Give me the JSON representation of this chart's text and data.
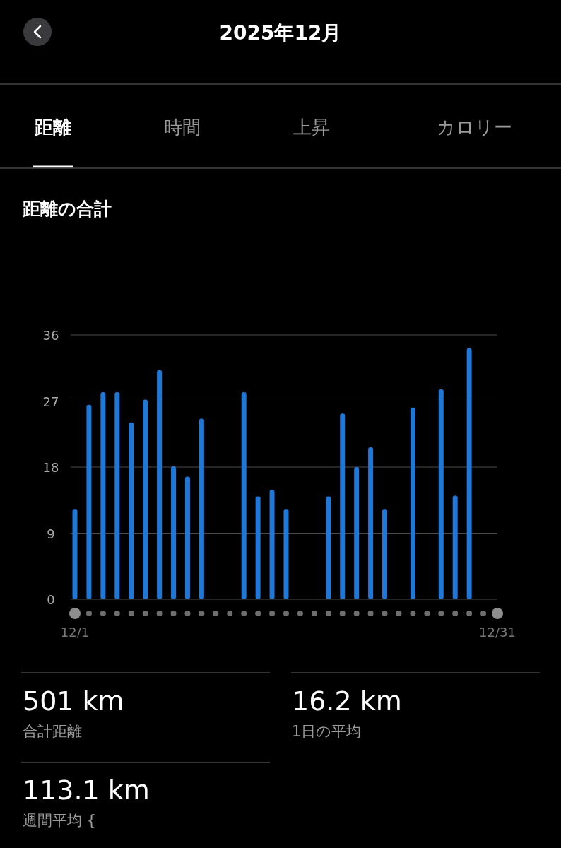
{
  "chart_data": {
    "type": "bar",
    "title": "2025年12月",
    "subtitle": "距離の合計",
    "categories": [
      "12/1",
      null,
      null,
      null,
      null,
      null,
      null,
      null,
      null,
      null,
      null,
      null,
      null,
      null,
      null,
      null,
      null,
      null,
      null,
      null,
      null,
      null,
      null,
      null,
      null,
      null,
      null,
      null,
      null,
      null,
      "12/31"
    ],
    "values": [
      12.3,
      26.5,
      28.2,
      28.2,
      24.1,
      27.2,
      31.2,
      18.1,
      16.7,
      24.6,
      null,
      null,
      28.2,
      14.0,
      14.9,
      12.3,
      null,
      null,
      14.0,
      25.3,
      18.0,
      20.7,
      12.3,
      null,
      26.1,
      null,
      28.6,
      14.1,
      34.2,
      null,
      null
    ],
    "color": "#1f78d8",
    "ylim": [
      0,
      36
    ],
    "yticks": [
      0,
      9,
      18,
      27,
      36
    ],
    "grid": "y",
    "annotations": [
      "距離",
      "時間",
      "上昇",
      "カロリー",
      "501 km",
      "合計距離",
      "16.2 km",
      "1日の平均",
      "113.1 km",
      "週間平均 {"
    ]
  }
}
